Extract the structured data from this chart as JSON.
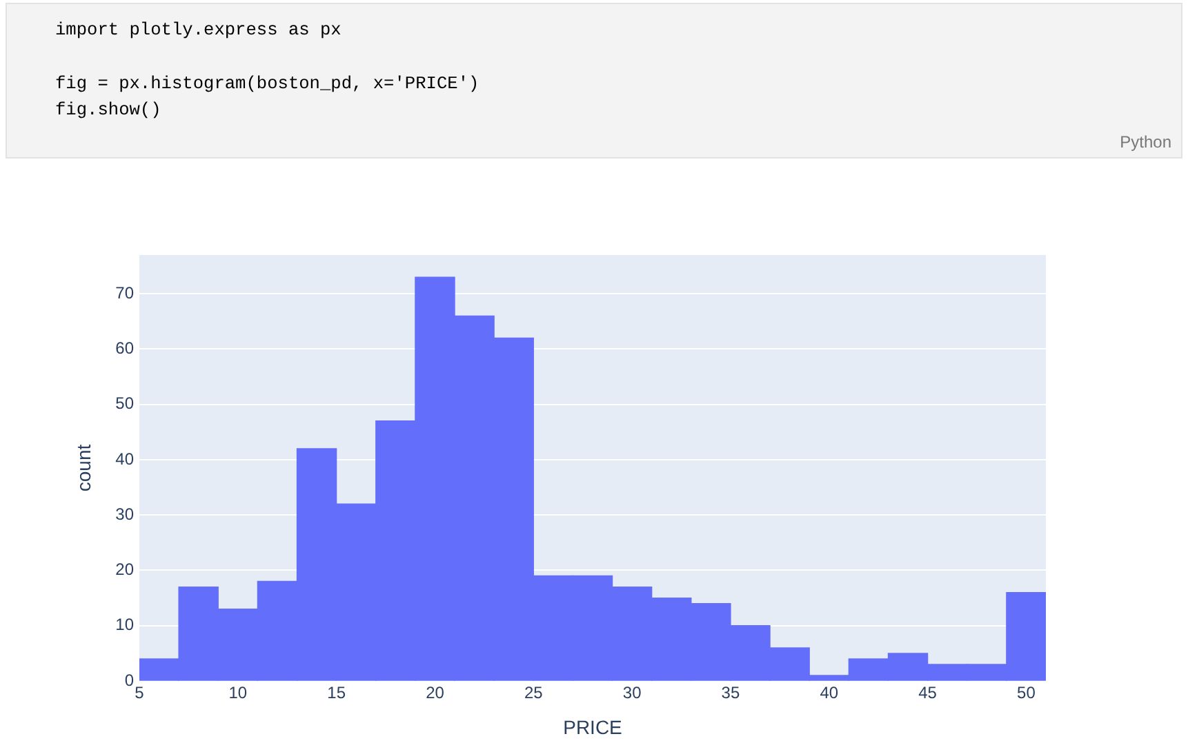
{
  "chart_data": {
    "type": "histogram",
    "xlabel": "PRICE",
    "ylabel": "count",
    "annotations": [
      "import plotly.express as px\n\nfig = px.histogram(boston_pd, x='PRICE')\nfig.show()",
      "Python"
    ],
    "bins": [
      5,
      7,
      9,
      11,
      13,
      15,
      17,
      19,
      21,
      23,
      25,
      27,
      29,
      31,
      33,
      35,
      37,
      39,
      41,
      43,
      45,
      47,
      49,
      51
    ],
    "values": [
      4,
      17,
      13,
      18,
      42,
      32,
      47,
      73,
      66,
      62,
      19,
      19,
      17,
      15,
      14,
      10,
      6,
      1,
      4,
      5,
      3,
      3,
      16
    ],
    "color": "#636efa",
    "xlim": [
      5,
      51
    ],
    "ylim": [
      0,
      77
    ],
    "xticks": [
      5,
      10,
      15,
      20,
      25,
      30,
      35,
      40,
      45,
      50
    ],
    "yticks": [
      0,
      10,
      20,
      30,
      40,
      50,
      60,
      70
    ],
    "grid": "y"
  }
}
